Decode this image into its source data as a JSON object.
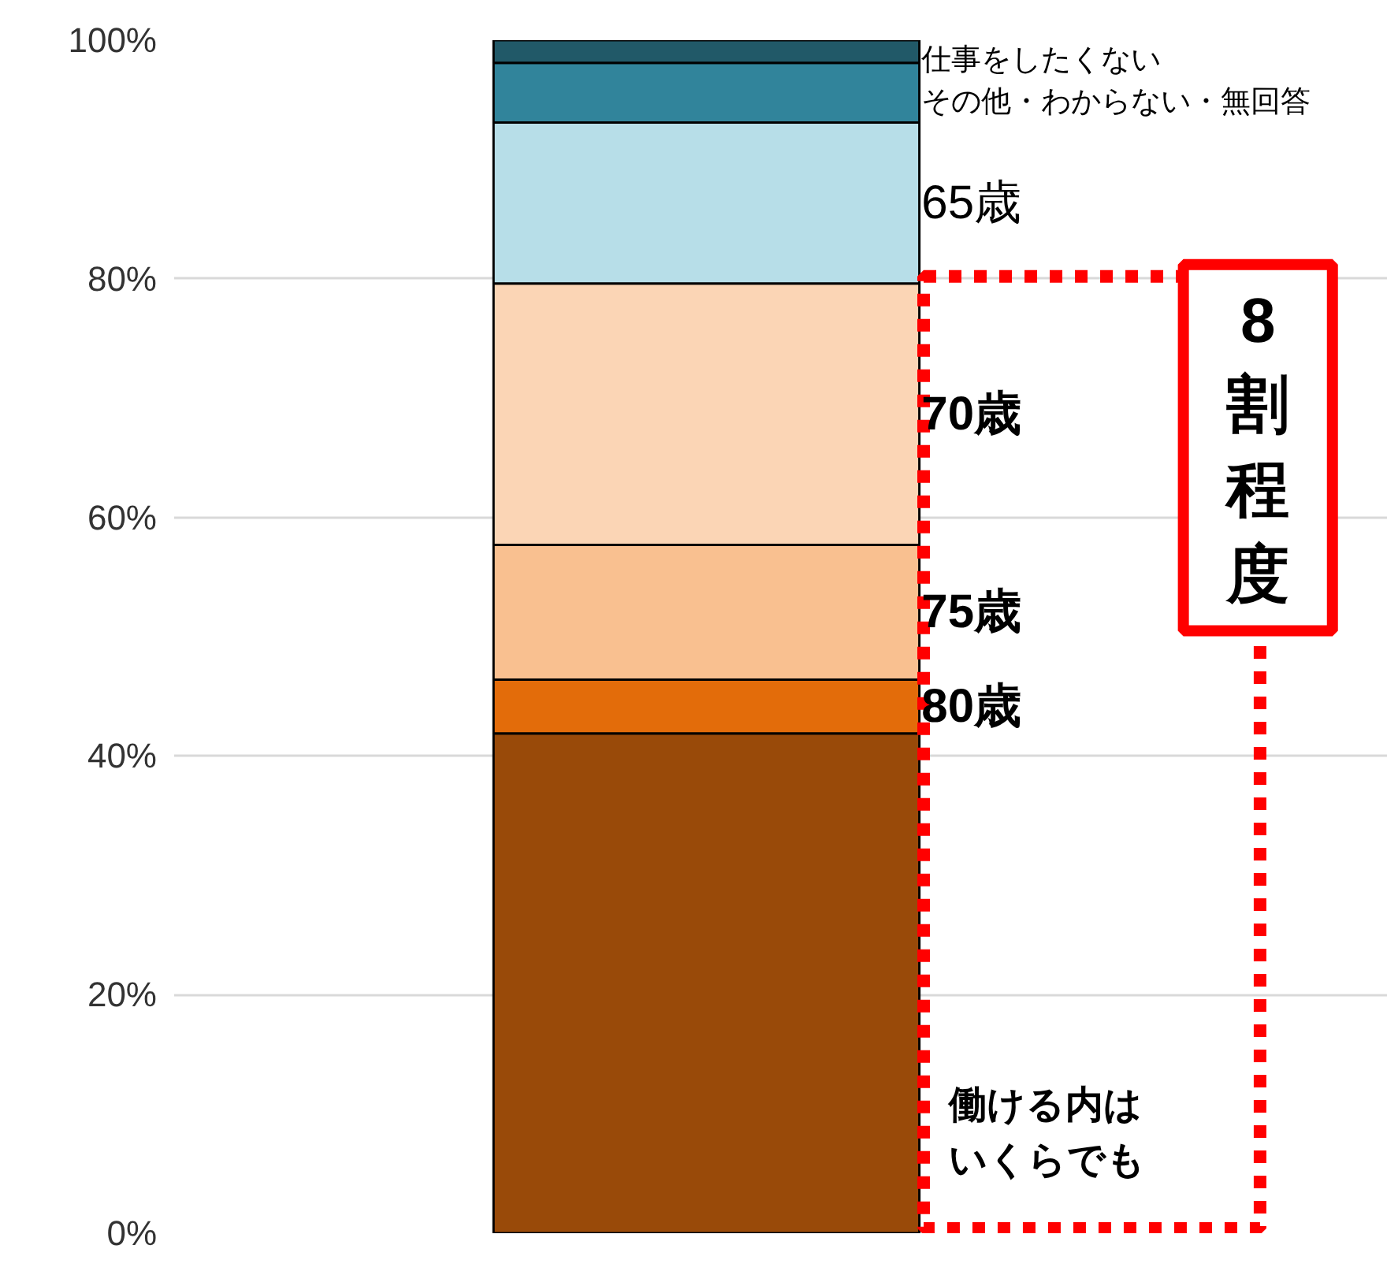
{
  "chart_data": {
    "type": "bar",
    "stacked": true,
    "categories": [
      null
    ],
    "series": [
      {
        "name": "働ける内はいくらでも",
        "color": "#994a09",
        "values": [
          41.9
        ]
      },
      {
        "name": "80歳",
        "color": "#e36c0a",
        "values": [
          4.5
        ]
      },
      {
        "name": "75歳",
        "color": "#f9c090",
        "values": [
          11.3
        ]
      },
      {
        "name": "70歳",
        "color": "#fbd5b5",
        "values": [
          21.9
        ]
      },
      {
        "name": "65歳",
        "color": "#b7dee8",
        "values": [
          13.5
        ]
      },
      {
        "name": "その他・わからない・無回答",
        "color": "#31849b",
        "values": [
          5.0
        ]
      },
      {
        "name": "仕事をしたくない",
        "color": "#215968",
        "values": [
          1.9
        ]
      }
    ],
    "ylim": [
      0,
      100
    ],
    "yticks": [
      {
        "value": 0,
        "label": "0%"
      },
      {
        "value": 20,
        "label": "20%"
      },
      {
        "value": 40,
        "label": "40%"
      },
      {
        "value": 60,
        "label": "60%"
      },
      {
        "value": 80,
        "label": "80%"
      },
      {
        "value": 100,
        "label": "100%"
      }
    ],
    "grid": "y",
    "annotations": [
      "8割程度"
    ]
  }
}
